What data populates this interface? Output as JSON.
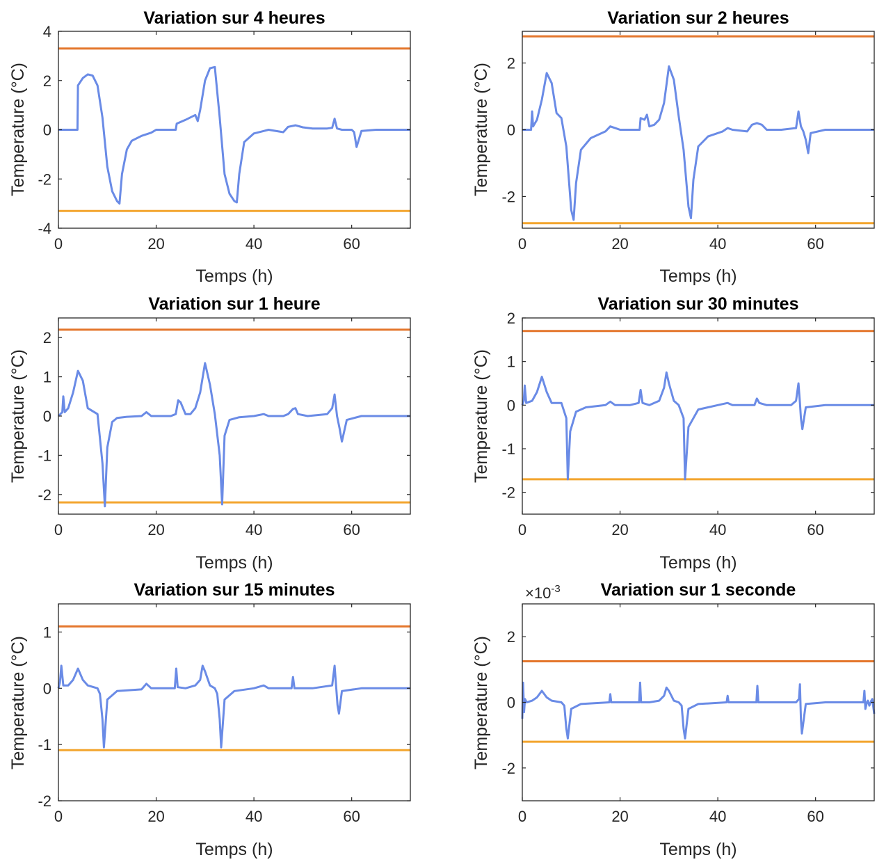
{
  "chart_data": [
    {
      "type": "line",
      "title": "Variation sur 4 heures",
      "xlabel": "Temps (h)",
      "ylabel": "Temperature (°C)",
      "xlim": [
        0,
        72
      ],
      "ylim": [
        -4,
        4
      ],
      "xticks": [
        "0",
        "20",
        "40",
        "60"
      ],
      "xtick_values": [
        0,
        20,
        40,
        60
      ],
      "yticks": [
        "-4",
        "-2",
        "0",
        "2",
        "4"
      ],
      "ytick_values": [
        -4,
        -2,
        0,
        2,
        4
      ],
      "upper_limit": 3.3,
      "lower_limit": -3.3,
      "x": [
        0,
        3.9,
        4.0,
        5,
        6,
        7,
        8,
        9,
        10,
        11,
        12,
        12.5,
        13,
        14,
        15,
        17,
        19,
        20,
        22,
        24,
        24.2,
        26,
        28,
        28.5,
        29,
        30,
        31,
        32,
        33,
        34,
        35,
        36,
        36.5,
        37,
        38,
        40,
        42,
        43,
        46,
        47,
        48.5,
        50,
        52,
        55,
        56,
        56.5,
        57,
        58,
        60,
        60.5,
        61,
        62,
        65,
        68,
        70,
        72
      ],
      "y": [
        0,
        0,
        1.8,
        2.1,
        2.25,
        2.2,
        1.8,
        0.5,
        -1.5,
        -2.5,
        -2.9,
        -3.0,
        -1.8,
        -0.8,
        -0.45,
        -0.25,
        -0.12,
        0,
        0,
        0,
        0.25,
        0.4,
        0.6,
        0.35,
        0.8,
        2.0,
        2.5,
        2.55,
        0.5,
        -1.8,
        -2.6,
        -2.9,
        -2.95,
        -1.8,
        -0.5,
        -0.15,
        -0.05,
        0,
        -0.1,
        0.12,
        0.18,
        0.1,
        0.05,
        0.05,
        0.08,
        0.45,
        0.05,
        0,
        0,
        -0.1,
        -0.7,
        -0.05,
        0,
        0,
        0,
        0
      ]
    },
    {
      "type": "line",
      "title": "Variation sur 2 heures",
      "xlabel": "Temps (h)",
      "ylabel": "Temperature (°C)",
      "xlim": [
        0,
        72
      ],
      "ylim": [
        -2.95,
        2.95
      ],
      "xticks": [
        "0",
        "20",
        "40",
        "60"
      ],
      "xtick_values": [
        0,
        20,
        40,
        60
      ],
      "yticks": [
        "-2",
        "0",
        "2"
      ],
      "ytick_values": [
        -2,
        0,
        2
      ],
      "upper_limit": 2.8,
      "lower_limit": -2.8,
      "x": [
        0,
        1.8,
        2.0,
        2.2,
        3,
        4,
        5,
        6,
        7,
        8,
        9,
        10,
        10.5,
        11,
        12,
        14,
        17,
        18,
        19,
        20,
        22,
        24,
        24.2,
        25,
        25.5,
        26,
        27,
        28,
        29,
        30,
        31,
        32,
        33,
        34,
        34.5,
        35,
        36,
        38,
        41,
        42,
        43,
        46,
        47,
        48,
        49,
        50,
        53,
        56,
        56.5,
        57,
        57.5,
        58,
        58.5,
        59,
        62,
        66,
        70,
        72
      ],
      "y": [
        0,
        0,
        0.55,
        0.1,
        0.3,
        0.9,
        1.7,
        1.4,
        0.5,
        0.35,
        -0.5,
        -2.4,
        -2.7,
        -1.6,
        -0.6,
        -0.25,
        -0.05,
        0.1,
        0.05,
        0,
        0,
        0,
        0.35,
        0.3,
        0.45,
        0.1,
        0.15,
        0.3,
        0.8,
        1.9,
        1.5,
        0.4,
        -0.6,
        -2.3,
        -2.65,
        -1.5,
        -0.5,
        -0.2,
        -0.05,
        0.05,
        0,
        -0.05,
        0.15,
        0.2,
        0.15,
        0,
        0,
        0.05,
        0.55,
        0.1,
        -0.05,
        -0.3,
        -0.7,
        -0.1,
        0,
        0,
        0,
        0
      ]
    },
    {
      "type": "line",
      "title": "Variation sur 1 heure",
      "xlabel": "Temps (h)",
      "ylabel": "Temperature (°C)",
      "xlim": [
        0,
        72
      ],
      "ylim": [
        -2.5,
        2.5
      ],
      "xticks": [
        "0",
        "20",
        "40",
        "60"
      ],
      "xtick_values": [
        0,
        20,
        40,
        60
      ],
      "yticks": [
        "-2",
        "-1",
        "0",
        "1",
        "2"
      ],
      "ytick_values": [
        -2,
        -1,
        0,
        1,
        2
      ],
      "upper_limit": 2.2,
      "lower_limit": -2.2,
      "x": [
        0,
        0.8,
        1.0,
        1.3,
        2,
        3,
        4,
        5,
        6,
        8,
        9,
        9.5,
        10,
        11,
        12,
        14,
        17,
        18,
        19,
        20,
        23,
        24,
        24.5,
        25,
        26,
        27,
        28,
        29,
        30,
        31,
        32,
        33,
        33.5,
        34,
        35,
        37,
        40,
        42,
        43,
        46,
        47,
        48,
        48.5,
        49,
        51,
        55,
        56,
        56.5,
        57,
        57.5,
        58,
        59,
        62,
        66,
        70,
        72
      ],
      "y": [
        0,
        0.1,
        0.5,
        0.1,
        0.2,
        0.6,
        1.15,
        0.9,
        0.2,
        0.05,
        -1.2,
        -2.3,
        -0.8,
        -0.15,
        -0.05,
        -0.02,
        0,
        0.1,
        0,
        0,
        0,
        0.05,
        0.4,
        0.35,
        0.05,
        0.05,
        0.2,
        0.6,
        1.35,
        0.8,
        0.05,
        -1.0,
        -2.25,
        -0.5,
        -0.1,
        -0.03,
        0,
        0.05,
        0,
        0,
        0.05,
        0.18,
        0.2,
        0.05,
        0,
        0.05,
        0.2,
        0.55,
        0,
        -0.3,
        -0.65,
        -0.1,
        0,
        0,
        0,
        0
      ]
    },
    {
      "type": "line",
      "title": "Variation sur 30 minutes",
      "xlabel": "Temps (h)",
      "ylabel": "Temperature (°C)",
      "xlim": [
        0,
        72
      ],
      "ylim": [
        -2.5,
        2
      ],
      "xticks": [
        "0",
        "20",
        "40",
        "60"
      ],
      "xtick_values": [
        0,
        20,
        40,
        60
      ],
      "yticks": [
        "-2",
        "-1",
        "0",
        "1",
        "2"
      ],
      "ytick_values": [
        -2,
        -1,
        0,
        1,
        2
      ],
      "upper_limit": 1.7,
      "lower_limit": -1.7,
      "x": [
        0,
        0.3,
        0.5,
        0.8,
        2,
        3,
        4,
        5,
        6,
        8,
        9,
        9.3,
        9.8,
        11,
        13,
        17,
        18,
        19,
        22,
        23.8,
        24.2,
        24.6,
        26,
        28,
        29,
        29.5,
        30,
        31,
        32,
        33,
        33.3,
        34,
        36,
        40,
        42,
        43,
        47.5,
        48,
        48.5,
        50,
        55,
        56,
        56.5,
        56.8,
        57,
        57.3,
        58,
        62,
        66,
        70,
        72
      ],
      "y": [
        0,
        0.1,
        0.45,
        0.05,
        0.1,
        0.3,
        0.65,
        0.3,
        0.05,
        0.05,
        -0.3,
        -1.7,
        -0.6,
        -0.15,
        -0.05,
        0,
        0.08,
        0,
        0,
        0.05,
        0.35,
        0.05,
        0,
        0.1,
        0.4,
        0.75,
        0.5,
        0.1,
        0,
        -0.3,
        -1.7,
        -0.5,
        -0.1,
        0,
        0.05,
        0,
        0,
        0.15,
        0.05,
        0,
        0,
        0.1,
        0.5,
        0.05,
        -0.3,
        -0.55,
        -0.05,
        0,
        0,
        0,
        0
      ]
    },
    {
      "type": "line",
      "title": "Variation sur 15 minutes",
      "xlabel": "Temps (h)",
      "ylabel": "Temperature (°C)",
      "xlim": [
        0,
        72
      ],
      "ylim": [
        -2,
        1.5
      ],
      "xticks": [
        "0",
        "20",
        "40",
        "60"
      ],
      "xtick_values": [
        0,
        20,
        40,
        60
      ],
      "yticks": [
        "-2",
        "-1",
        "0",
        "1"
      ],
      "ytick_values": [
        -2,
        -1,
        0,
        1
      ],
      "upper_limit": 1.1,
      "lower_limit": -1.1,
      "x": [
        0,
        0.3,
        0.6,
        1.0,
        2,
        3,
        4,
        5,
        6,
        8,
        8.5,
        9,
        9.3,
        10,
        12,
        17,
        18,
        19,
        23.8,
        24.1,
        24.4,
        26,
        28,
        29,
        29.5,
        30,
        31,
        32,
        32.5,
        33,
        33.3,
        34,
        36,
        40,
        42,
        43,
        47.7,
        48,
        48.3,
        52,
        56,
        56.5,
        56.8,
        57.1,
        57.4,
        58,
        62,
        66,
        70,
        72
      ],
      "y": [
        0,
        0.1,
        0.4,
        0.05,
        0.05,
        0.15,
        0.35,
        0.15,
        0.05,
        0,
        -0.1,
        -0.55,
        -1.05,
        -0.2,
        -0.05,
        -0.02,
        0.08,
        0,
        0,
        0.35,
        0.02,
        0,
        0.05,
        0.15,
        0.4,
        0.3,
        0.05,
        0,
        -0.1,
        -0.55,
        -1.05,
        -0.2,
        -0.05,
        0,
        0.05,
        0,
        0,
        0.2,
        0,
        0,
        0.05,
        0.4,
        0.05,
        -0.3,
        -0.45,
        -0.05,
        0,
        0,
        0,
        0
      ]
    },
    {
      "type": "line",
      "title": "Variation sur 1 seconde",
      "xlabel": "Temps (h)",
      "ylabel": "Temperature (°C)",
      "exponent": "×10",
      "exponent_power": "-3",
      "xlim": [
        0,
        72
      ],
      "ylim": [
        -3,
        3
      ],
      "xticks": [
        "0",
        "20",
        "40",
        "60"
      ],
      "xtick_values": [
        0,
        20,
        40,
        60
      ],
      "yticks": [
        "-2",
        "0",
        "2"
      ],
      "ytick_values": [
        -2,
        0,
        2
      ],
      "upper_limit": 1.25,
      "lower_limit": -1.2,
      "x": [
        0,
        0.15,
        0.35,
        0.55,
        0.9,
        2,
        3,
        4,
        5,
        6,
        8,
        8.6,
        9,
        9.3,
        10,
        12,
        17.8,
        18,
        18.2,
        23.9,
        24.1,
        24.3,
        26,
        28,
        29,
        29.5,
        30,
        31,
        32,
        32.6,
        33,
        33.3,
        34,
        36,
        41.8,
        42,
        42.2,
        47.9,
        48.1,
        48.3,
        52,
        56,
        56.6,
        56.8,
        57,
        57.2,
        58,
        62,
        66,
        69.8,
        70.0,
        70.2,
        70.5,
        70.7,
        71,
        71.4,
        71.6,
        72
      ],
      "y": [
        -0.5,
        0.6,
        -0.3,
        0.1,
        0,
        0.05,
        0.15,
        0.35,
        0.15,
        0.05,
        0,
        -0.1,
        -0.8,
        -1.1,
        -0.2,
        -0.05,
        0,
        0.25,
        0,
        0,
        0.6,
        0,
        0,
        0.05,
        0.2,
        0.45,
        0.35,
        0.05,
        0,
        -0.1,
        -0.8,
        -1.1,
        -0.2,
        -0.05,
        0,
        0.2,
        0,
        0,
        0.5,
        0,
        0,
        0,
        0.1,
        0.55,
        -0.5,
        -0.95,
        -0.05,
        0,
        0,
        0,
        0.35,
        -0.2,
        0,
        0.05,
        -0.1,
        0.05,
        0.1,
        -0.35
      ]
    }
  ]
}
